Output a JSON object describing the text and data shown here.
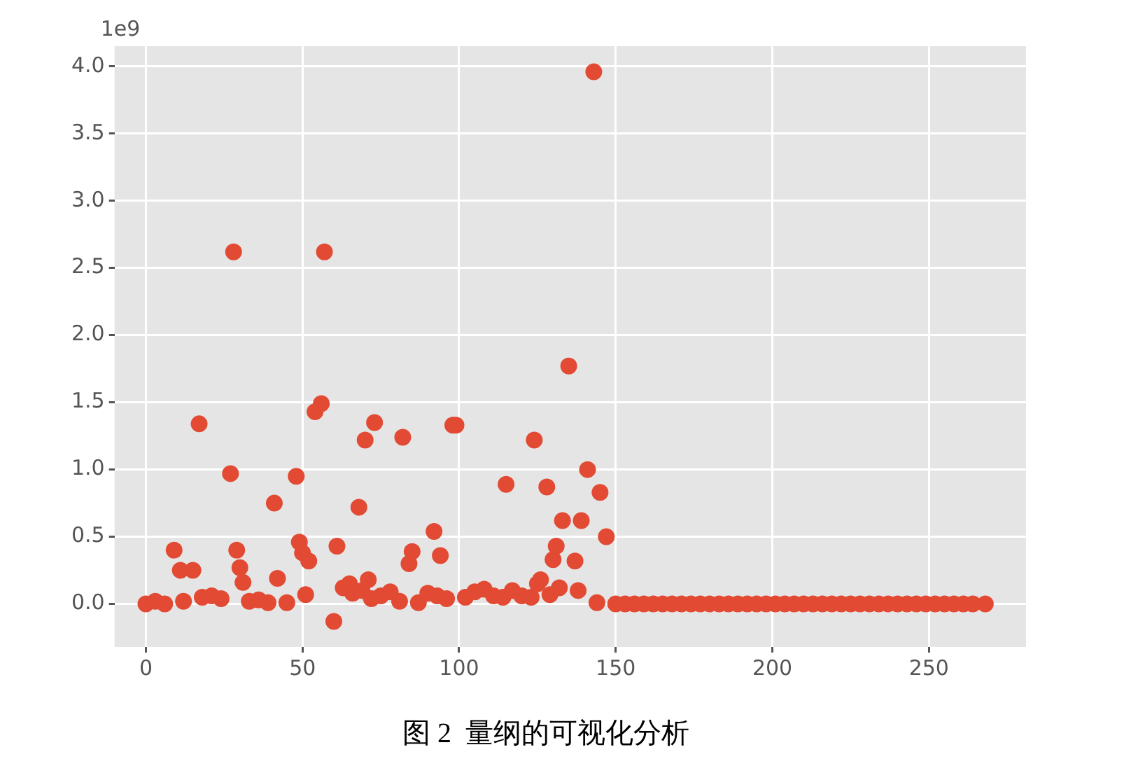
{
  "chart_data": {
    "type": "scatter",
    "annotations": [
      "1e9",
      "图 2  量纲的可视化分析"
    ],
    "x": [
      0,
      3,
      6,
      9,
      11,
      12,
      15,
      17,
      18,
      21,
      24,
      27,
      28,
      29,
      30,
      31,
      33,
      36,
      39,
      41,
      42,
      45,
      48,
      49,
      50,
      51,
      52,
      54,
      56,
      57,
      60,
      61,
      63,
      65,
      66,
      68,
      69,
      70,
      71,
      72,
      73,
      75,
      78,
      81,
      82,
      84,
      85,
      87,
      90,
      92,
      93,
      94,
      96,
      98,
      99,
      102,
      105,
      108,
      111,
      114,
      115,
      117,
      120,
      123,
      124,
      125,
      126,
      128,
      129,
      130,
      131,
      132,
      133,
      135,
      137,
      138,
      139,
      141,
      143,
      144,
      145,
      147,
      150,
      153,
      156,
      159,
      162,
      165,
      168,
      171,
      174,
      177,
      180,
      183,
      186,
      189,
      192,
      195,
      198,
      201,
      204,
      207,
      210,
      213,
      216,
      219,
      222,
      225,
      228,
      231,
      234,
      237,
      240,
      243,
      246,
      249,
      252,
      255,
      258,
      261,
      264,
      268
    ],
    "series": [
      {
        "color": "#e24a33",
        "values": [
          0,
          0.02,
          0,
          0.4,
          0.25,
          0.02,
          0.25,
          1.34,
          0.05,
          0.06,
          0.04,
          0.97,
          2.62,
          0.4,
          0.27,
          0.16,
          0.02,
          0.03,
          0.01,
          0.75,
          0.19,
          0.01,
          0.95,
          0.46,
          0.38,
          0.07,
          0.32,
          1.43,
          1.49,
          2.62,
          -0.13,
          0.43,
          0.12,
          0.15,
          0.08,
          0.72,
          0.1,
          1.22,
          0.18,
          0.04,
          1.35,
          0.06,
          0.09,
          0.02,
          1.24,
          0.3,
          0.39,
          0.01,
          0.08,
          0.54,
          0.06,
          0.36,
          0.04,
          1.33,
          1.33,
          0.05,
          0.09,
          0.11,
          0.06,
          0.05,
          0.89,
          0.1,
          0.06,
          0.05,
          1.22,
          0.15,
          0.18,
          0.87,
          0.07,
          0.33,
          0.43,
          0.12,
          0.62,
          1.77,
          0.32,
          0.1,
          0.62,
          1,
          3.96,
          0.01,
          0.83,
          0.5,
          0,
          0,
          0,
          0,
          0,
          0,
          0,
          0,
          0,
          0,
          0,
          0,
          0,
          0,
          0,
          0,
          0,
          0,
          0,
          0,
          0,
          0,
          0,
          0,
          0,
          0,
          0,
          0,
          0,
          0,
          0,
          0,
          0,
          0,
          0,
          0,
          0,
          0,
          0,
          0
        ]
      }
    ],
    "xlim": [
      -10,
      281
    ],
    "xticks": [
      0,
      50,
      100,
      150,
      200,
      250
    ],
    "ylim": [
      -0.32,
      4.15
    ],
    "yticks": [
      {
        "value": 0,
        "label": "0.0"
      },
      0.5,
      {
        "value": 1,
        "label": "1.0"
      },
      1.5,
      {
        "value": 2,
        "label": "2.0"
      },
      2.5,
      {
        "value": 3,
        "label": "3.0"
      },
      3.5,
      {
        "value": 4,
        "label": "4.0"
      }
    ],
    "grid": true,
    "legend": false,
    "marker": "circle"
  }
}
